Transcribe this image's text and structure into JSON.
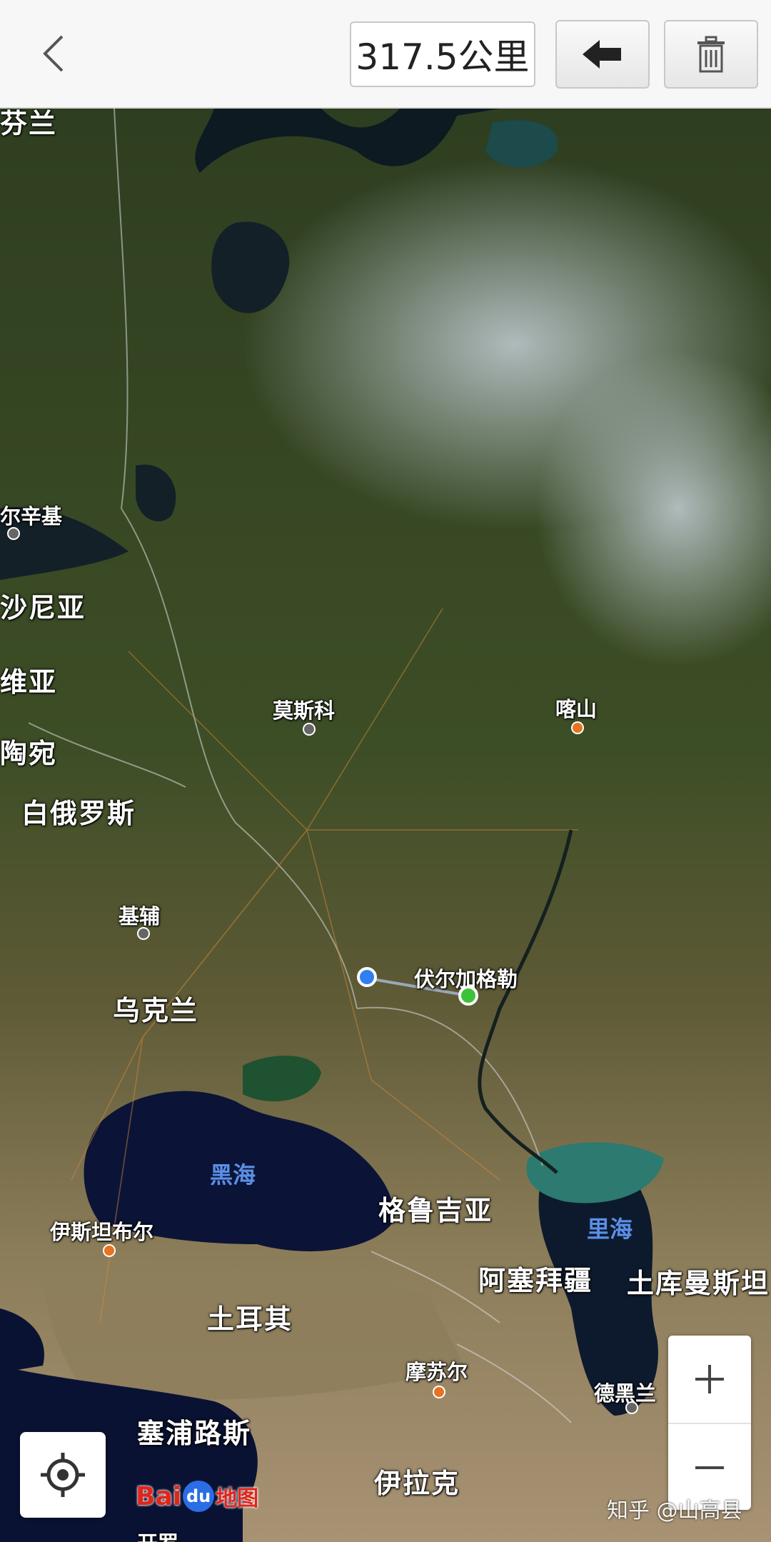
{
  "toolbar": {
    "distance": "317.5公里",
    "back_icon": "chevron-left-icon",
    "undo_icon": "arrow-left-icon",
    "delete_icon": "trash-icon"
  },
  "labels": {
    "top_fragment": "芬兰",
    "helsinki": "尔辛基",
    "estonia": "沙尼亚",
    "latvia": "维亚",
    "lithuania": "陶宛",
    "moscow": "莫斯科",
    "kazan": "喀山",
    "belarus": "白俄罗斯",
    "kyiv": "基辅",
    "ukraine": "乌克兰",
    "volgograd": "伏尔加格勒",
    "black_sea": "黑海",
    "georgia": "格鲁吉亚",
    "caspian": "里海",
    "istanbul": "伊斯坦布尔",
    "azerbaijan": "阿塞拜疆",
    "turkmenistan": "土库曼斯坦",
    "turkey": "土耳其",
    "mosul": "摩苏尔",
    "tehran": "德黑兰",
    "cyprus": "塞浦路斯",
    "iraq": "伊拉克",
    "bottom_fragment": "开罗"
  },
  "zoom": {
    "in": "+",
    "out": "−"
  },
  "logo": {
    "bai": "Bai",
    "du": "du",
    "map": "地图"
  },
  "watermark": "知乎 @山高县",
  "colors": {
    "start_point": "#2f7ff0",
    "end_point": "#3cc23a",
    "city_dot": "#e5731f"
  }
}
